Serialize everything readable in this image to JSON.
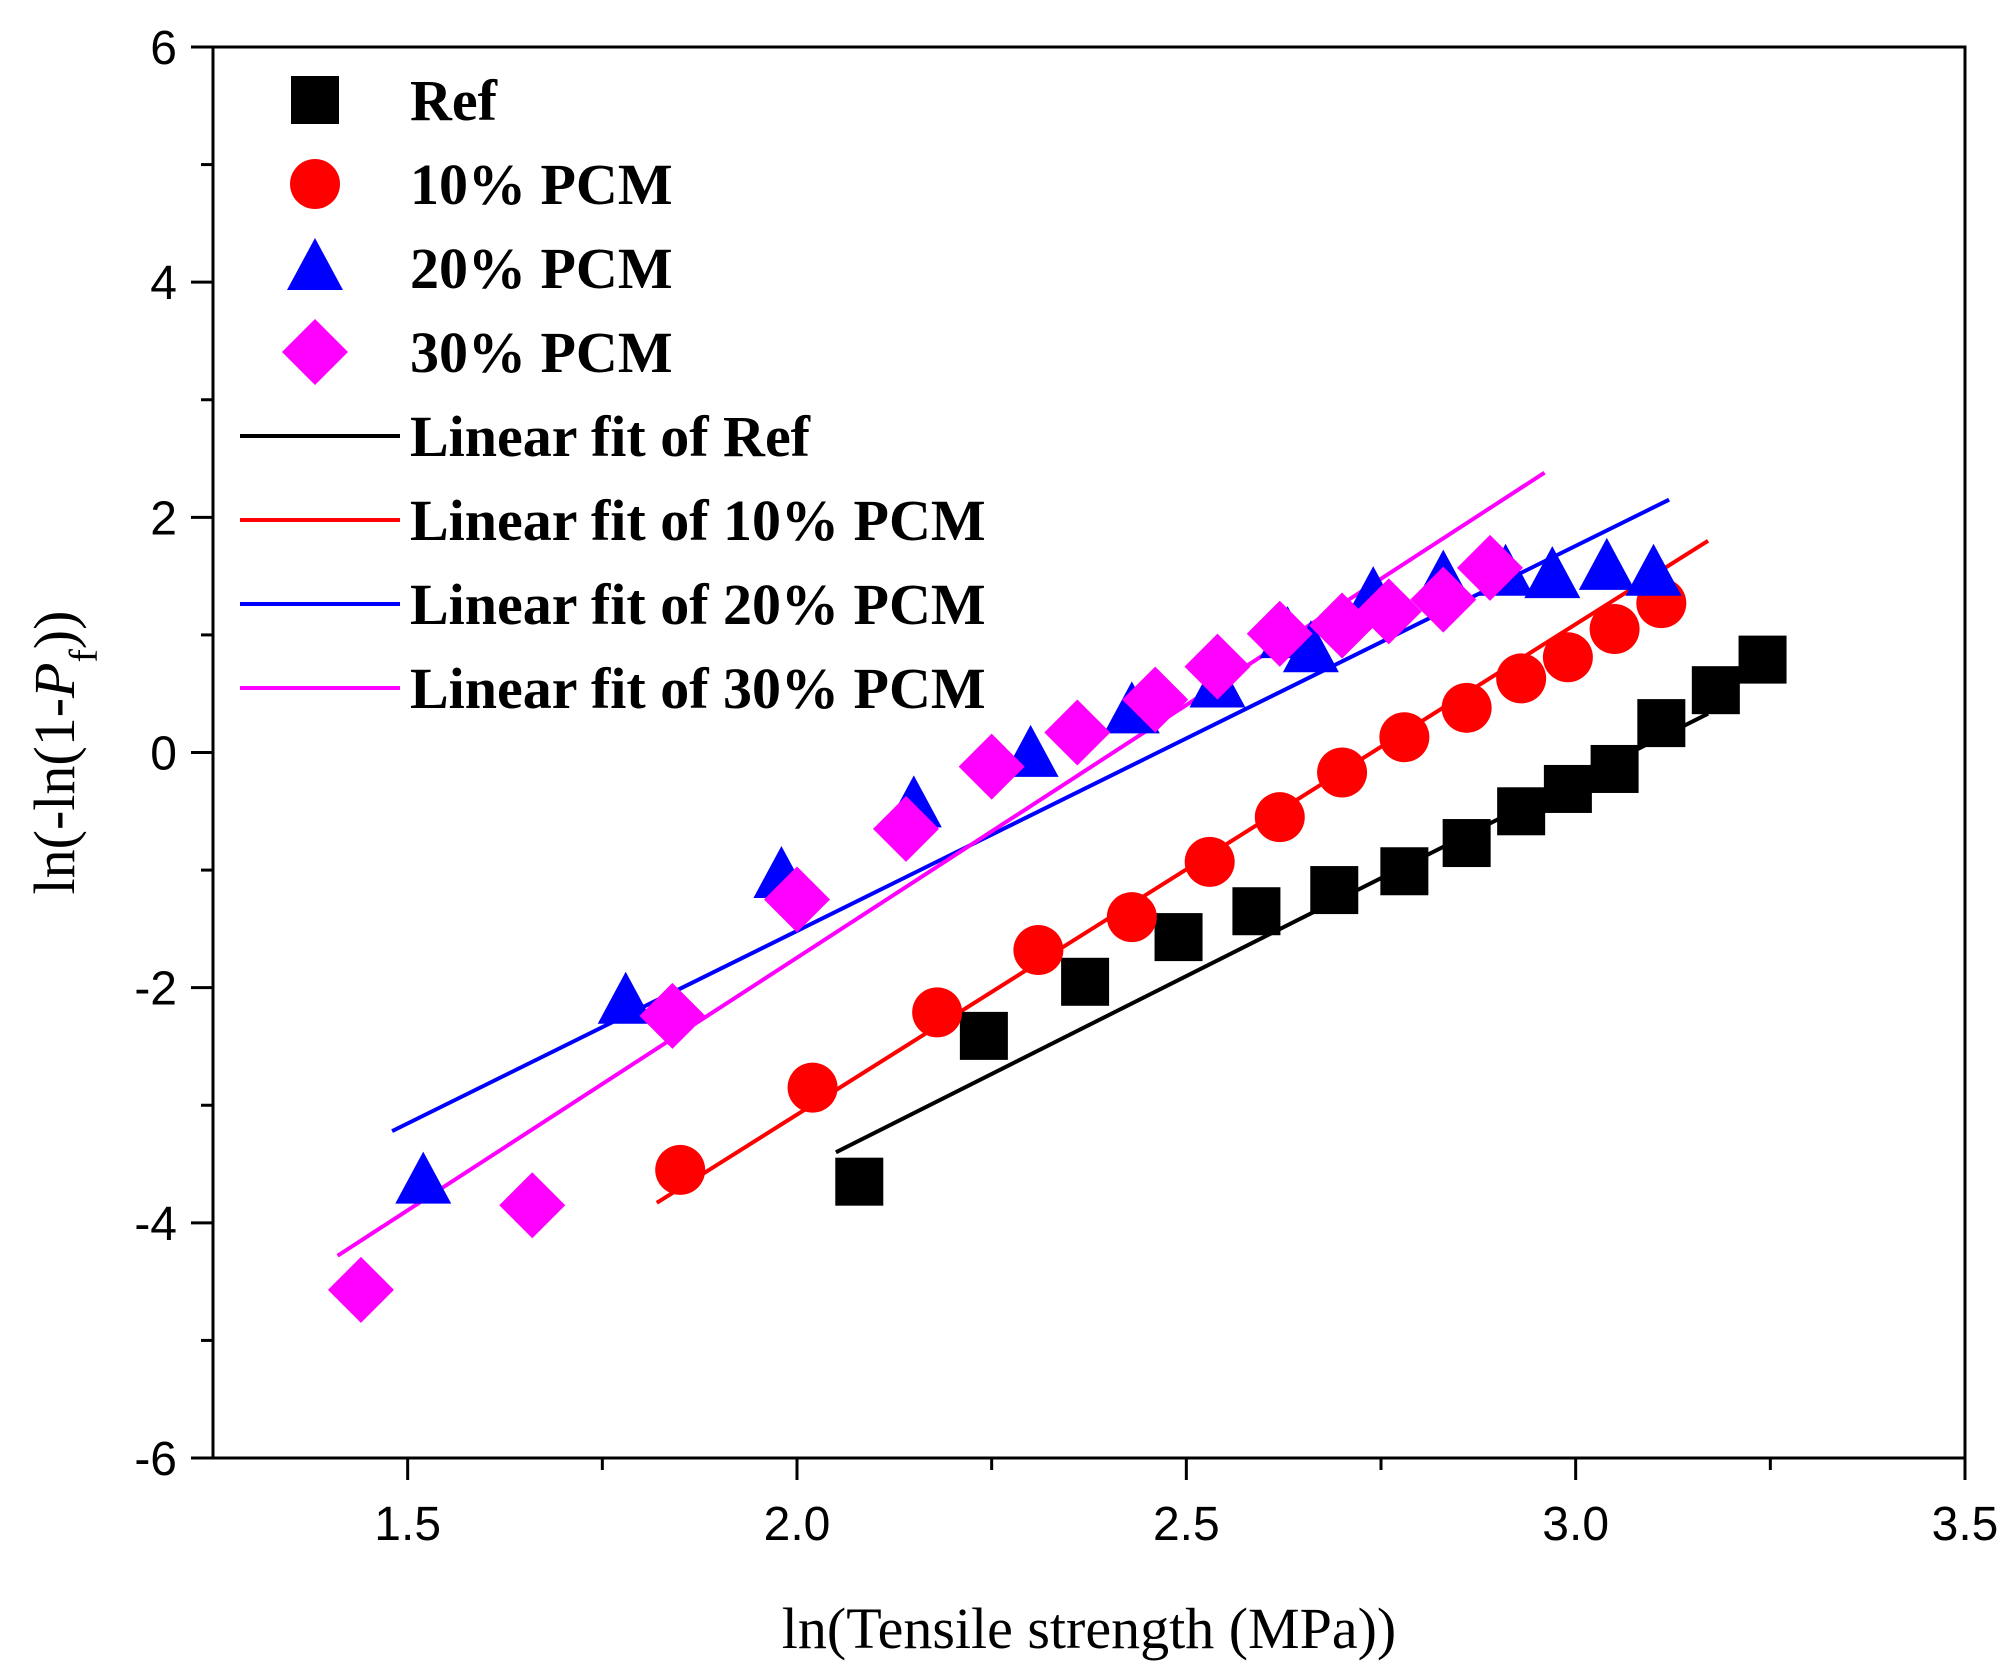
{
  "chart_data": {
    "type": "scatter",
    "title": "",
    "xlabel": "ln(Tensile strength (MPa))",
    "ylabel_prefix": "ln(-ln(1-",
    "ylabel_var": "P",
    "ylabel_sub": "f",
    "ylabel_suffix": "))",
    "xlim": [
      1.25,
      3.5
    ],
    "ylim": [
      -6,
      6
    ],
    "xticks": [
      1.5,
      2.0,
      2.5,
      3.0,
      3.5
    ],
    "xtick_labels": [
      "1.5",
      "2.0",
      "2.5",
      "3.0",
      "3.5"
    ],
    "yticks": [
      -6,
      -4,
      -2,
      0,
      2,
      4,
      6
    ],
    "ytick_labels": [
      "-6",
      "-4",
      "-2",
      "0",
      "2",
      "4",
      "6"
    ],
    "grid": false,
    "legend_position": "top-left",
    "series": [
      {
        "name": "Ref",
        "marker": "square",
        "color": "#000000",
        "x": [
          2.08,
          2.24,
          2.37,
          2.49,
          2.59,
          2.69,
          2.78,
          2.86,
          2.93,
          2.99,
          3.05,
          3.11,
          3.18,
          3.24
        ],
        "y": [
          -3.65,
          -2.41,
          -1.95,
          -1.57,
          -1.35,
          -1.17,
          -1.01,
          -0.77,
          -0.5,
          -0.31,
          -0.14,
          0.25,
          0.53,
          0.79
        ]
      },
      {
        "name": "10% PCM",
        "marker": "circle",
        "color": "#ff0000",
        "x": [
          1.85,
          2.02,
          2.18,
          2.31,
          2.43,
          2.53,
          2.62,
          2.7,
          2.78,
          2.86,
          2.93,
          2.99,
          3.05,
          3.11
        ],
        "y": [
          -3.55,
          -2.85,
          -2.21,
          -1.68,
          -1.4,
          -0.93,
          -0.55,
          -0.17,
          0.13,
          0.38,
          0.63,
          0.81,
          1.05,
          1.27
        ]
      },
      {
        "name": "20% PCM",
        "marker": "triangle",
        "color": "#0000ff",
        "x": [
          1.52,
          1.78,
          1.98,
          2.15,
          2.3,
          2.43,
          2.54,
          2.63,
          2.66,
          2.74,
          2.83,
          2.91,
          2.97,
          3.04,
          3.1
        ],
        "y": [
          -3.65,
          -2.12,
          -1.05,
          -0.45,
          -0.02,
          0.35,
          0.57,
          0.99,
          0.87,
          1.33,
          1.47,
          1.52,
          1.5,
          1.57,
          1.52
        ]
      },
      {
        "name": "30% PCM",
        "marker": "diamond",
        "color": "#ff00ff",
        "x": [
          1.44,
          1.66,
          1.84,
          2.0,
          2.14,
          2.25,
          2.36,
          2.46,
          2.54,
          2.62,
          2.7,
          2.76,
          2.83,
          2.89
        ],
        "y": [
          -4.57,
          -3.85,
          -2.24,
          -1.25,
          -0.65,
          -0.12,
          0.17,
          0.45,
          0.73,
          1.01,
          1.08,
          1.2,
          1.3,
          1.57
        ]
      }
    ],
    "fits": [
      {
        "name": "Linear fit of Ref",
        "color": "#000000",
        "x": [
          2.05,
          3.17
        ],
        "y": [
          -3.4,
          0.33
        ]
      },
      {
        "name": "Linear fit of 10% PCM",
        "color": "#ff0000",
        "x": [
          1.82,
          3.17
        ],
        "y": [
          -3.83,
          1.8
        ]
      },
      {
        "name": "Linear fit of 20% PCM",
        "color": "#0000ff",
        "x": [
          1.48,
          3.12
        ],
        "y": [
          -3.22,
          2.15
        ]
      },
      {
        "name": "Linear fit of 30% PCM",
        "color": "#ff00ff",
        "x": [
          1.41,
          2.96
        ],
        "y": [
          -4.28,
          2.38
        ]
      }
    ]
  }
}
